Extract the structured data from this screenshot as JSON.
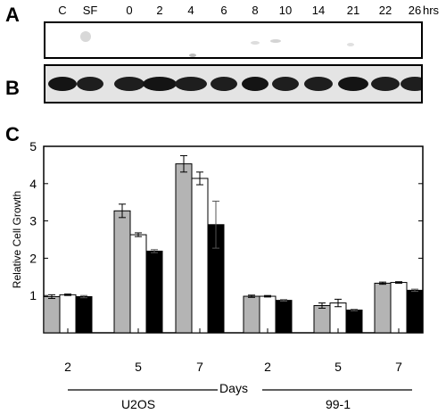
{
  "panels": {
    "a": "A",
    "b": "B",
    "c": "C"
  },
  "lanes": [
    "C",
    "SF",
    "0",
    "2",
    "4",
    "6",
    "8",
    "10",
    "14",
    "21",
    "22",
    "26"
  ],
  "lanes_unit": "hrs",
  "chart_data": {
    "type": "bar",
    "ylabel": "Relative Cell Growth",
    "ylim": [
      0,
      5
    ],
    "yticks": [
      1,
      2,
      3,
      4,
      5
    ],
    "xlabel": "Days",
    "groups": [
      {
        "name": "U2OS",
        "categories": [
          "2",
          "5",
          "7"
        ]
      },
      {
        "name": "99-1",
        "categories": [
          "2",
          "5",
          "7"
        ]
      }
    ],
    "series": [
      {
        "color": "#b4b4b4",
        "values": [
          0.97,
          3.27,
          4.53,
          0.98,
          0.73,
          1.33
        ],
        "errors": [
          0.05,
          0.18,
          0.22,
          0.03,
          0.07,
          0.03
        ]
      },
      {
        "color": "#ffffff",
        "values": [
          1.02,
          2.63,
          4.14,
          0.98,
          0.8,
          1.35
        ],
        "errors": [
          0.02,
          0.05,
          0.17,
          0.02,
          0.1,
          0.02
        ]
      },
      {
        "color": "#000000",
        "values": [
          0.97,
          2.19,
          2.9,
          0.87,
          0.61,
          1.14
        ],
        "errors": [
          0.03,
          0.04,
          0.63,
          0.02,
          0.02,
          0.03
        ]
      }
    ]
  }
}
